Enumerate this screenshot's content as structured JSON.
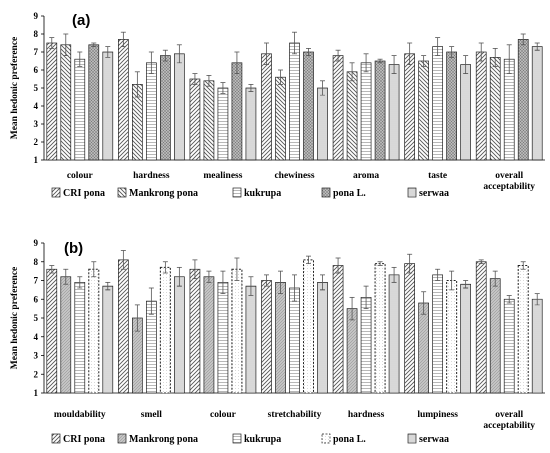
{
  "chart_data": [
    {
      "type": "bar",
      "panel_label": "(a)",
      "ylabel": "Mean hedonic preference",
      "ylim": [
        1,
        9
      ],
      "yticks": [
        "1",
        "2",
        "3",
        "4",
        "5",
        "6",
        "7",
        "8",
        "9"
      ],
      "categories": [
        "colour",
        "hardness",
        "mealiness",
        "chewiness",
        "aroma",
        "taste",
        "overall acceptability"
      ],
      "category_lines": [
        [
          "colour"
        ],
        [
          "hardness"
        ],
        [
          "mealiness"
        ],
        [
          "chewiness"
        ],
        [
          "aroma"
        ],
        [
          "taste"
        ],
        [
          "overall",
          "acceptability"
        ]
      ],
      "series": [
        {
          "name": "CRI pona",
          "pattern": "diag-left",
          "values": [
            7.5,
            7.7,
            5.5,
            6.9,
            6.8,
            6.9,
            7.0
          ],
          "errors": [
            0.3,
            0.4,
            0.3,
            0.6,
            0.3,
            0.6,
            0.5
          ]
        },
        {
          "name": "Mankrong pona",
          "pattern": "diag-right",
          "values": [
            7.4,
            5.2,
            5.4,
            5.6,
            5.9,
            6.5,
            6.7
          ],
          "errors": [
            0.6,
            0.7,
            0.3,
            0.4,
            0.5,
            0.3,
            0.5
          ]
        },
        {
          "name": "kukrupa",
          "pattern": "horiz",
          "values": [
            6.6,
            6.4,
            5.0,
            7.5,
            6.4,
            7.3,
            6.6
          ],
          "errors": [
            0.4,
            0.6,
            0.3,
            0.6,
            0.5,
            0.5,
            0.8
          ]
        },
        {
          "name": "pona L.",
          "pattern": "grey-cross",
          "values": [
            7.4,
            6.8,
            6.4,
            7.0,
            6.5,
            7.0,
            7.7
          ],
          "errors": [
            0.1,
            0.3,
            0.6,
            0.2,
            0.1,
            0.3,
            0.3
          ]
        },
        {
          "name": "serwaa",
          "pattern": "fine-horiz",
          "values": [
            7.0,
            6.9,
            5.0,
            5.0,
            6.3,
            6.3,
            7.3
          ],
          "errors": [
            0.3,
            0.5,
            0.2,
            0.4,
            0.5,
            0.5,
            0.2
          ]
        }
      ],
      "legend": [
        "CRI pona",
        "Mankrong pona",
        "kukrupa",
        "pona L.",
        "serwaa"
      ]
    },
    {
      "type": "bar",
      "panel_label": "(b)",
      "ylabel": "Mean hedonic preference",
      "ylim": [
        1,
        9
      ],
      "yticks": [
        "1",
        "2",
        "3",
        "4",
        "5",
        "6",
        "7",
        "8",
        "9"
      ],
      "categories": [
        "mouldability",
        "smell",
        "colour",
        "stretchability",
        "hardness",
        "lumpiness",
        "overall acceptability"
      ],
      "category_lines": [
        [
          "mouldability"
        ],
        [
          "smell"
        ],
        [
          "colour"
        ],
        [
          "stretchability"
        ],
        [
          "hardness"
        ],
        [
          "lumpiness"
        ],
        [
          "overall",
          "acceptability"
        ]
      ],
      "series": [
        {
          "name": "CRI pona",
          "pattern": "diag-left",
          "values": [
            7.6,
            8.1,
            7.6,
            7.0,
            7.8,
            7.9,
            8.0
          ],
          "errors": [
            0.2,
            0.5,
            0.5,
            0.3,
            0.4,
            0.5,
            0.1
          ]
        },
        {
          "name": "Mankrong pona",
          "pattern": "grey-diag",
          "values": [
            7.2,
            5.0,
            7.2,
            6.9,
            5.5,
            5.8,
            7.1
          ],
          "errors": [
            0.4,
            0.7,
            0.3,
            0.6,
            0.6,
            0.6,
            0.4
          ]
        },
        {
          "name": "kukrupa",
          "pattern": "horiz",
          "values": [
            6.9,
            5.9,
            6.9,
            6.6,
            6.1,
            7.3,
            6.0
          ],
          "errors": [
            0.3,
            0.7,
            0.6,
            0.7,
            0.6,
            0.3,
            0.2
          ]
        },
        {
          "name": "pona L.",
          "pattern": "dotted-outline",
          "values": [
            7.6,
            7.7,
            7.6,
            8.1,
            7.9,
            7.0,
            7.8
          ],
          "errors": [
            0.4,
            0.3,
            0.6,
            0.2,
            0.1,
            0.5,
            0.2
          ]
        },
        {
          "name": "serwaa",
          "pattern": "fine-horiz",
          "values": [
            6.7,
            7.2,
            6.7,
            6.9,
            7.3,
            6.8,
            6.0
          ],
          "errors": [
            0.2,
            0.5,
            0.5,
            0.4,
            0.4,
            0.2,
            0.3
          ]
        }
      ],
      "legend": [
        "CRI pona",
        "Mankrong pona",
        "kukrupa",
        "pona L.",
        "serwaa"
      ]
    }
  ]
}
